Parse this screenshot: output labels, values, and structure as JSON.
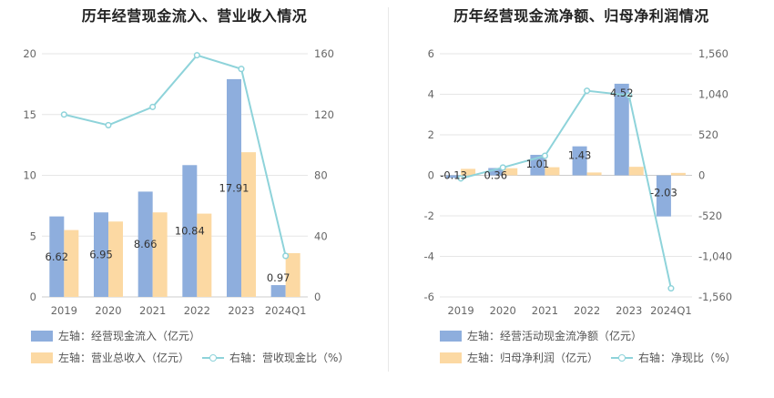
{
  "colors": {
    "bar_blue": "#8eaedd",
    "bar_orange": "#fcd9a3",
    "line_teal": "#8ed3da",
    "grid": "#e6e6e6"
  },
  "chart_data": [
    {
      "type": "bar",
      "title": "历年经营现金流入、营业收入情况",
      "categories": [
        "2019",
        "2020",
        "2021",
        "2022",
        "2023",
        "2024Q1"
      ],
      "ylim_left": [
        0,
        20
      ],
      "yticks_left": [
        "0",
        "5",
        "10",
        "15",
        "20"
      ],
      "ylim_right": [
        0,
        160
      ],
      "yticks_right": [
        "0",
        "40",
        "80",
        "120",
        "160"
      ],
      "grid": true,
      "legend_position": "bottom",
      "series": [
        {
          "name": "左轴：经营现金流入（亿元）",
          "kind": "bar",
          "axis": "left",
          "values": [
            6.62,
            6.95,
            8.66,
            10.84,
            17.91,
            0.97
          ],
          "labels": [
            "6.62",
            "6.95",
            "8.66",
            "10.84",
            "17.91",
            "0.97"
          ]
        },
        {
          "name": "左轴：营业总收入（亿元）",
          "kind": "bar",
          "axis": "left",
          "values": [
            5.5,
            6.2,
            6.95,
            6.85,
            11.9,
            3.6
          ]
        },
        {
          "name": "右轴：营收现金比（%）",
          "kind": "line",
          "axis": "right",
          "values": [
            120,
            113,
            125,
            159,
            150,
            27
          ]
        }
      ]
    },
    {
      "type": "bar",
      "title": "历年经营现金流净额、归母净利润情况",
      "categories": [
        "2019",
        "2020",
        "2021",
        "2022",
        "2023",
        "2024Q1"
      ],
      "ylim_left": [
        -6,
        6
      ],
      "yticks_left": [
        "-6",
        "-4",
        "-2",
        "0",
        "2",
        "4",
        "6"
      ],
      "ylim_right": [
        -1560,
        1560
      ],
      "yticks_right": [
        "-1,560",
        "-1,040",
        "-520",
        "0",
        "520",
        "1,040",
        "1,560"
      ],
      "grid": true,
      "legend_position": "bottom",
      "series": [
        {
          "name": "左轴：经营活动现金流净额（亿元）",
          "kind": "bar",
          "axis": "left",
          "values": [
            -0.13,
            0.36,
            1.01,
            1.43,
            4.52,
            -2.03
          ],
          "labels": [
            "-0.13",
            "0.36",
            "1.01",
            "1.43",
            "4.52",
            "-2.03"
          ]
        },
        {
          "name": "左轴：归母净利润（亿元）",
          "kind": "bar",
          "axis": "left",
          "values": [
            0.32,
            0.35,
            0.4,
            0.14,
            0.42,
            0.12
          ]
        },
        {
          "name": "右轴：净现比（%）",
          "kind": "line",
          "axis": "right",
          "values": [
            -40,
            100,
            250,
            1085,
            1025,
            -1450
          ]
        }
      ]
    }
  ]
}
